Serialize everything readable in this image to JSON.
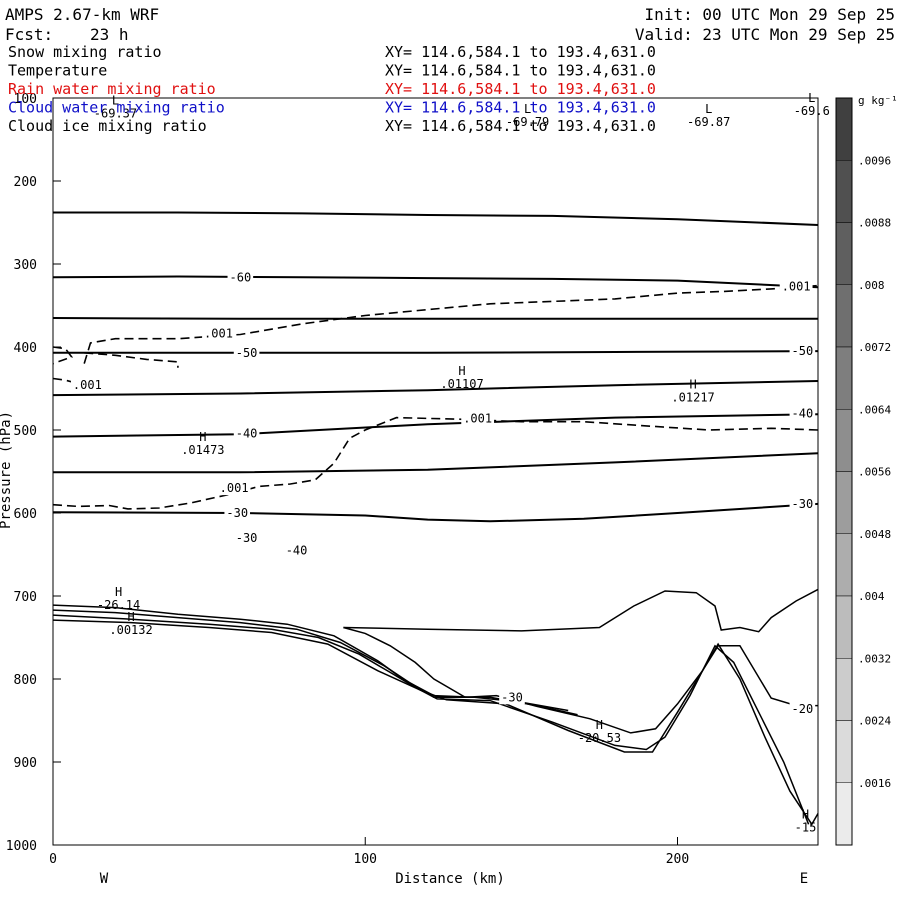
{
  "header": {
    "model": "AMPS 2.67-km WRF",
    "init": "Init: 00 UTC Mon 29 Sep 25",
    "forecast_label": "Fcst:",
    "forecast_value": "23 h",
    "valid": "Valid: 23 UTC Mon 29 Sep 25"
  },
  "fields": [
    {
      "name": "Snow mixing ratio",
      "xy": "XY= 114.6,584.1 to 193.4,631.0",
      "color": "#000000"
    },
    {
      "name": "Temperature",
      "xy": "XY= 114.6,584.1 to 193.4,631.0",
      "color": "#000000"
    },
    {
      "name": "Rain water mixing ratio",
      "xy": "XY= 114.6,584.1 to 193.4,631.0",
      "color": "#e01010"
    },
    {
      "name": "Cloud water mixing ratio",
      "xy": "XY= 114.6,584.1 to 193.4,631.0",
      "color": "#1010c8"
    },
    {
      "name": "Cloud ice mixing ratio",
      "xy": "XY= 114.6,584.1 to 193.4,631.0",
      "color": "#000000"
    }
  ],
  "chart_data": {
    "type": "contour-cross-section",
    "xlabel": "Distance (km)",
    "ylabel": "Pressure (hPa)",
    "xlim": [
      0,
      245
    ],
    "ylim": [
      1000,
      100
    ],
    "xticks": [
      0,
      100,
      200
    ],
    "yticks": [
      100,
      200,
      300,
      400,
      500,
      600,
      700,
      800,
      900,
      1000
    ],
    "x_endpoints": {
      "left": "W",
      "right": "E"
    },
    "colorbar": {
      "unit": "g kg⁻¹",
      "levels": [
        0.0016,
        0.0024,
        0.0032,
        0.004,
        0.0048,
        0.0056,
        0.0064,
        0.0072,
        0.008,
        0.0088,
        0.0096
      ],
      "labels": [
        ".0016",
        ".0024",
        ".0032",
        ".004",
        ".0048",
        ".0056",
        ".0064",
        ".0072",
        ".008",
        ".0088",
        ".0096"
      ]
    },
    "temperature_contours": [
      {
        "level": -70,
        "points": [
          [
            0,
            238
          ],
          [
            40,
            238
          ],
          [
            80,
            239
          ],
          [
            120,
            241
          ],
          [
            160,
            242
          ],
          [
            200,
            246
          ],
          [
            245,
            253
          ]
        ]
      },
      {
        "level": -60,
        "points": [
          [
            0,
            316
          ],
          [
            40,
            315
          ],
          [
            80,
            316
          ],
          [
            120,
            317
          ],
          [
            160,
            318
          ],
          [
            200,
            320
          ],
          [
            245,
            328
          ]
        ]
      },
      {
        "level": -55,
        "points": [
          [
            0,
            365
          ],
          [
            60,
            366
          ],
          [
            120,
            366
          ],
          [
            180,
            366
          ],
          [
            245,
            366
          ]
        ]
      },
      {
        "level": -50,
        "points": [
          [
            0,
            407
          ],
          [
            60,
            407
          ],
          [
            120,
            407
          ],
          [
            180,
            406
          ],
          [
            245,
            405
          ]
        ]
      },
      {
        "level": -45,
        "points": [
          [
            0,
            458
          ],
          [
            60,
            456
          ],
          [
            120,
            452
          ],
          [
            180,
            446
          ],
          [
            245,
            441
          ]
        ]
      },
      {
        "level": -40,
        "points": [
          [
            0,
            508
          ],
          [
            60,
            505
          ],
          [
            120,
            493
          ],
          [
            180,
            485
          ],
          [
            245,
            481
          ]
        ]
      },
      {
        "level": -35,
        "points": [
          [
            0,
            551
          ],
          [
            60,
            551
          ],
          [
            120,
            548
          ],
          [
            180,
            539
          ],
          [
            245,
            528
          ]
        ]
      },
      {
        "level": -30,
        "points": [
          [
            0,
            599
          ],
          [
            60,
            600
          ],
          [
            100,
            603
          ],
          [
            120,
            608
          ],
          [
            140,
            610
          ],
          [
            170,
            607
          ],
          [
            200,
            600
          ],
          [
            245,
            589
          ]
        ]
      }
    ],
    "temperature_labels": [
      {
        "x": 60,
        "y": 316,
        "text": "-60"
      },
      {
        "x": 62,
        "y": 407,
        "text": "-50"
      },
      {
        "x": 240,
        "y": 405,
        "text": "-50"
      },
      {
        "x": 62,
        "y": 504,
        "text": "-40"
      },
      {
        "x": 240,
        "y": 480,
        "text": "-40"
      },
      {
        "x": 59,
        "y": 600,
        "text": "-30"
      },
      {
        "x": 240,
        "y": 589,
        "text": "-30"
      },
      {
        "x": 62,
        "y": 630,
        "text": "-30"
      },
      {
        "x": 78,
        "y": 645,
        "text": "-40"
      },
      {
        "x": 147,
        "y": 822,
        "text": "-30"
      },
      {
        "x": 240,
        "y": 836,
        "text": "-20"
      }
    ],
    "terrain_contours": [
      {
        "points": [
          [
            0,
            711
          ],
          [
            20,
            714
          ],
          [
            40,
            722
          ],
          [
            60,
            728
          ],
          [
            75,
            734
          ],
          [
            90,
            748
          ],
          [
            104,
            778
          ],
          [
            112,
            800
          ],
          [
            122,
            820
          ],
          [
            135,
            822
          ],
          [
            150,
            828
          ],
          [
            165,
            838
          ]
        ]
      },
      {
        "points": [
          [
            0,
            717
          ],
          [
            20,
            720
          ],
          [
            40,
            726
          ],
          [
            60,
            732
          ],
          [
            78,
            740
          ],
          [
            92,
            756
          ],
          [
            106,
            784
          ],
          [
            114,
            804
          ],
          [
            122,
            822
          ],
          [
            140,
            822
          ],
          [
            155,
            832
          ],
          [
            168,
            843
          ]
        ]
      },
      {
        "points": [
          [
            0,
            723
          ],
          [
            25,
            728
          ],
          [
            50,
            734
          ],
          [
            70,
            740
          ],
          [
            85,
            750
          ],
          [
            98,
            770
          ],
          [
            108,
            792
          ],
          [
            116,
            810
          ],
          [
            123,
            824
          ],
          [
            140,
            826
          ],
          [
            160,
            852
          ],
          [
            180,
            880
          ],
          [
            190,
            885
          ],
          [
            196,
            870
          ],
          [
            204,
            820
          ],
          [
            212,
            760
          ],
          [
            218,
            780
          ],
          [
            226,
            840
          ],
          [
            234,
            900
          ],
          [
            242,
            975
          ]
        ]
      },
      {
        "points": [
          [
            0,
            729
          ],
          [
            25,
            732
          ],
          [
            50,
            738
          ],
          [
            70,
            744
          ],
          [
            88,
            758
          ],
          [
            104,
            790
          ],
          [
            118,
            814
          ],
          [
            126,
            825
          ],
          [
            145,
            830
          ],
          [
            165,
            862
          ],
          [
            183,
            888
          ],
          [
            192,
            888
          ],
          [
            200,
            840
          ],
          [
            208,
            790
          ],
          [
            213,
            758
          ],
          [
            220,
            800
          ],
          [
            228,
            870
          ],
          [
            236,
            935
          ],
          [
            243,
            975
          ],
          [
            245,
            962
          ]
        ]
      },
      {
        "points": [
          [
            93,
            738
          ],
          [
            100,
            745
          ],
          [
            108,
            760
          ],
          [
            116,
            780
          ],
          [
            122,
            800
          ],
          [
            132,
            822
          ],
          [
            142,
            820
          ],
          [
            155,
            833
          ],
          [
            172,
            848
          ],
          [
            185,
            865
          ],
          [
            193,
            860
          ],
          [
            200,
            830
          ],
          [
            208,
            790
          ],
          [
            213,
            760
          ],
          [
            220,
            760
          ],
          [
            230,
            823
          ],
          [
            238,
            832
          ],
          [
            245,
            832
          ]
        ]
      },
      {
        "points": [
          [
            93,
            738
          ],
          [
            120,
            740
          ],
          [
            150,
            742
          ],
          [
            175,
            738
          ],
          [
            186,
            712
          ],
          [
            196,
            694
          ],
          [
            206,
            696
          ],
          [
            212,
            712
          ],
          [
            214,
            741
          ],
          [
            220,
            738
          ],
          [
            226,
            743
          ],
          [
            230,
            726
          ],
          [
            238,
            706
          ],
          [
            245,
            692
          ]
        ]
      }
    ],
    "snow_contours": [
      {
        "level": 0.001,
        "points": [
          [
            10,
            420
          ],
          [
            12,
            395
          ],
          [
            20,
            390
          ],
          [
            40,
            390
          ],
          [
            60,
            385
          ],
          [
            80,
            372
          ],
          [
            100,
            362
          ],
          [
            120,
            355
          ],
          [
            140,
            348
          ],
          [
            160,
            345
          ],
          [
            180,
            342
          ],
          [
            200,
            335
          ],
          [
            215,
            333
          ],
          [
            230,
            330
          ],
          [
            245,
            326
          ]
        ]
      },
      {
        "level": 0.001,
        "points": [
          [
            0,
            400
          ],
          [
            4,
            402
          ],
          [
            6,
            412
          ],
          [
            0,
            420
          ]
        ]
      },
      {
        "level": 0.001,
        "points": [
          [
            10,
            407
          ],
          [
            20,
            410
          ],
          [
            30,
            415
          ],
          [
            40,
            418
          ],
          [
            40,
            425
          ]
        ]
      },
      {
        "level": 0.001,
        "points": [
          [
            0,
            438
          ],
          [
            4,
            440
          ],
          [
            8,
            444
          ],
          [
            12,
            445
          ]
        ]
      },
      {
        "level": 0.001,
        "points": [
          [
            0,
            590
          ],
          [
            8,
            592
          ],
          [
            18,
            591
          ],
          [
            24,
            595
          ],
          [
            34,
            594
          ],
          [
            44,
            588
          ],
          [
            56,
            578
          ],
          [
            66,
            568
          ],
          [
            76,
            565
          ],
          [
            84,
            560
          ],
          [
            90,
            540
          ],
          [
            95,
            510
          ],
          [
            100,
            500
          ],
          [
            110,
            485
          ],
          [
            130,
            487
          ],
          [
            150,
            490
          ],
          [
            170,
            490
          ],
          [
            190,
            495
          ],
          [
            210,
            500
          ],
          [
            230,
            498
          ],
          [
            245,
            500
          ]
        ]
      }
    ],
    "snow_labels": [
      {
        "x": 53,
        "y": 384,
        "text": ".001"
      },
      {
        "x": 11,
        "y": 446,
        "text": ".001"
      },
      {
        "x": 136,
        "y": 486,
        "text": ".001"
      },
      {
        "x": 58,
        "y": 570,
        "text": ".001"
      },
      {
        "x": 238,
        "y": 327,
        "text": ".001"
      }
    ],
    "extrema_labels": [
      {
        "x": 20,
        "y": 108,
        "mark": "L",
        "value": "-69.37"
      },
      {
        "x": 152,
        "y": 118,
        "mark": "L",
        "value": "-69.79"
      },
      {
        "x": 210,
        "y": 118,
        "mark": "L",
        "value": "-69.87"
      },
      {
        "x": 243,
        "y": 105,
        "mark": "L",
        "value": "-69.6"
      },
      {
        "x": 131,
        "y": 434,
        "mark": "H",
        "value": ".01107"
      },
      {
        "x": 205,
        "y": 450,
        "mark": "H",
        "value": ".01217"
      },
      {
        "x": 48,
        "y": 513,
        "mark": "H",
        "value": ".01473"
      },
      {
        "x": 21,
        "y": 700,
        "mark": "H",
        "value": "-26.14"
      },
      {
        "x": 25,
        "y": 730,
        "mark": "H",
        "value": ".00132"
      },
      {
        "x": 175,
        "y": 860,
        "mark": "H",
        "value": "-20.53"
      },
      {
        "x": 241,
        "y": 968,
        "mark": "H",
        "value": "-15"
      }
    ]
  }
}
